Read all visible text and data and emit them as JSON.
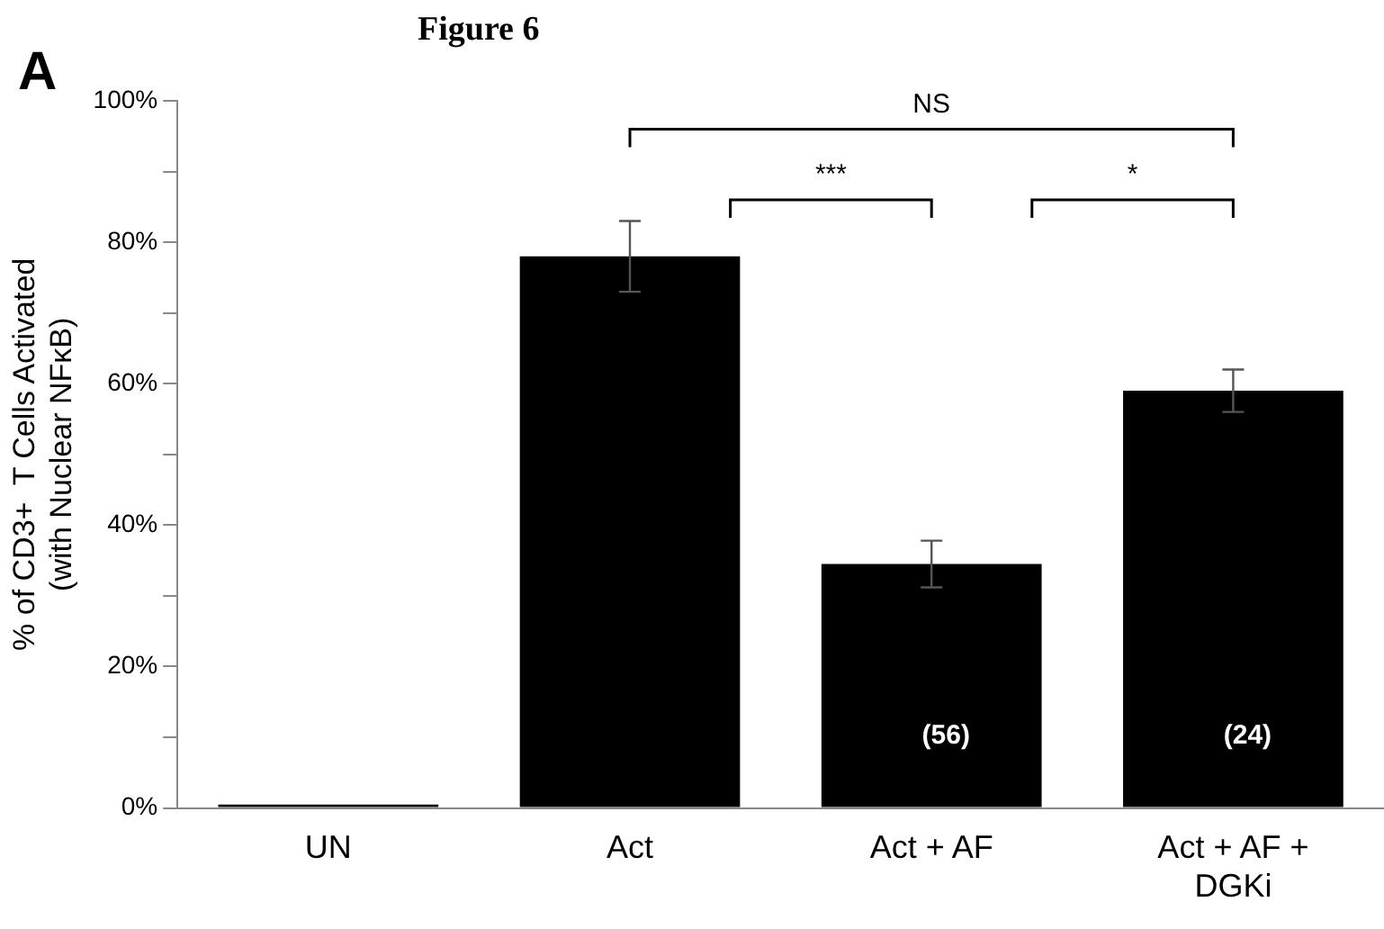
{
  "chart_data": {
    "type": "bar",
    "title": "Figure 6",
    "ylabel": "% of CD3+  T Cells Activated\n(with Nuclear NFκB)",
    "categories": [
      "UN",
      "Act",
      "Act + AF",
      "Act + AF + DGKi"
    ],
    "values": [
      0.5,
      78,
      34.5,
      59
    ],
    "errors": [
      null,
      5,
      3.3,
      3
    ],
    "color": "#000000",
    "ylim": [
      0,
      100
    ],
    "yticks": [
      {
        "value": 0,
        "label": "0%"
      },
      {
        "value": 10,
        "label": null
      },
      {
        "value": 20,
        "label": "20%"
      },
      {
        "value": 30,
        "label": null
      },
      {
        "value": 40,
        "label": "40%"
      },
      {
        "value": 50,
        "label": null
      },
      {
        "value": 60,
        "label": "60%"
      },
      {
        "value": 70,
        "label": null
      },
      {
        "value": 80,
        "label": "80%"
      },
      {
        "value": 90,
        "label": null
      },
      {
        "value": 100,
        "label": "100%"
      }
    ],
    "annotations": [
      "A",
      "NS",
      "***",
      "*",
      "(56)",
      "(24)"
    ],
    "grid": false,
    "legend": false
  }
}
